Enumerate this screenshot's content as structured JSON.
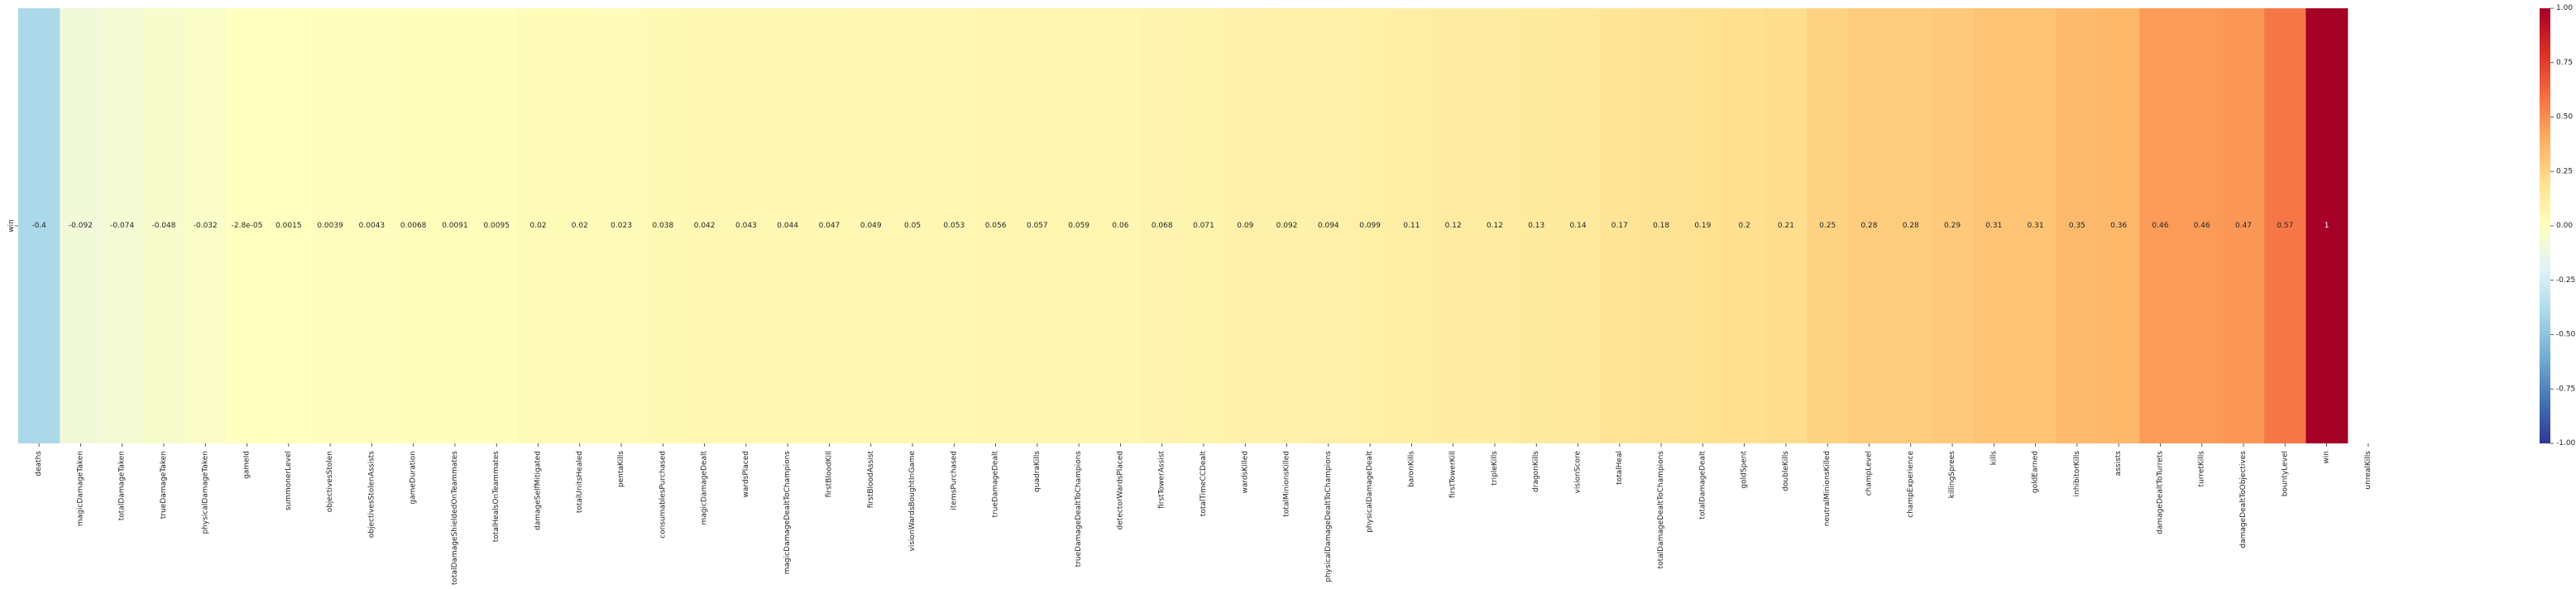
{
  "chart_data": {
    "type": "heatmap",
    "title": "",
    "xlabel": "",
    "ylabel": "",
    "y_categories": [
      "win"
    ],
    "x_categories": [
      "deaths",
      "magicDamageTaken",
      "totalDamageTaken",
      "trueDamageTaken",
      "physicalDamageTaken",
      "gameId",
      "summonerLevel",
      "objectivesStolen",
      "objectivesStolenAssists",
      "gameDuration",
      "totalDamageShieldedOnTeammates",
      "totalHealsOnTeammates",
      "damageSelfMitigated",
      "totalUnitsHealed",
      "pentaKills",
      "consumablesPurchased",
      "magicDamageDealt",
      "wardsPlaced",
      "magicDamageDealtToChampions",
      "firstBloodKill",
      "firstBloodAssist",
      "visionWardsBoughtInGame",
      "itemsPurchased",
      "trueDamageDealt",
      "quadraKills",
      "trueDamageDealtToChampions",
      "detectorWardsPlaced",
      "firstTowerAssist",
      "totalTimeCCDealt",
      "wardsKilled",
      "totalMinionsKilled",
      "physicalDamageDealtToChampions",
      "physicalDamageDealt",
      "baronKills",
      "firstTowerKill",
      "tripleKills",
      "dragonKills",
      "visionScore",
      "totalHeal",
      "totalDamageDealtToChampions",
      "totalDamageDealt",
      "goldSpent",
      "doubleKills",
      "neutralMinionsKilled",
      "champLevel",
      "champExperience",
      "killingSprees",
      "kills",
      "goldEarned",
      "inhibitorKills",
      "assists",
      "damageDealtToTurrets",
      "turretKills",
      "damageDealtToObjectives",
      "bountyLevel",
      "win",
      "unrealKills"
    ],
    "values": [
      -0.4,
      -0.092,
      -0.074,
      -0.048,
      -0.032,
      -2.8e-05,
      0.0015,
      0.0039,
      0.0043,
      0.0068,
      0.0091,
      0.0095,
      0.02,
      0.02,
      0.023,
      0.038,
      0.042,
      0.043,
      0.044,
      0.047,
      0.049,
      0.05,
      0.053,
      0.056,
      0.057,
      0.059,
      0.06,
      0.068,
      0.071,
      0.09,
      0.092,
      0.094,
      0.099,
      0.11,
      0.12,
      0.12,
      0.13,
      0.14,
      0.17,
      0.18,
      0.19,
      0.2,
      0.21,
      0.25,
      0.28,
      0.28,
      0.29,
      0.31,
      0.31,
      0.35,
      0.36,
      0.46,
      0.46,
      0.47,
      0.57,
      1,
      null
    ],
    "annotations": [
      "-0.4",
      "-0.092",
      "-0.074",
      "-0.048",
      "-0.032",
      "-2.8e-05",
      "0.0015",
      "0.0039",
      "0.0043",
      "0.0068",
      "0.0091",
      "0.0095",
      "0.02",
      "0.02",
      "0.023",
      "0.038",
      "0.042",
      "0.043",
      "0.044",
      "0.047",
      "0.049",
      "0.05",
      "0.053",
      "0.056",
      "0.057",
      "0.059",
      "0.06",
      "0.068",
      "0.071",
      "0.09",
      "0.092",
      "0.094",
      "0.099",
      "0.11",
      "0.12",
      "0.12",
      "0.13",
      "0.14",
      "0.17",
      "0.18",
      "0.19",
      "0.2",
      "0.21",
      "0.25",
      "0.28",
      "0.28",
      "0.29",
      "0.31",
      "0.31",
      "0.35",
      "0.36",
      "0.46",
      "0.46",
      "0.47",
      "0.57",
      "1",
      ""
    ],
    "colormap": "RdYlBu_r",
    "vmin": -1,
    "vmax": 1,
    "colorbar_ticks": [
      "-1.00",
      "-0.75",
      "-0.50",
      "-0.25",
      "0.00",
      "0.25",
      "0.50",
      "0.75",
      "1.00"
    ]
  }
}
